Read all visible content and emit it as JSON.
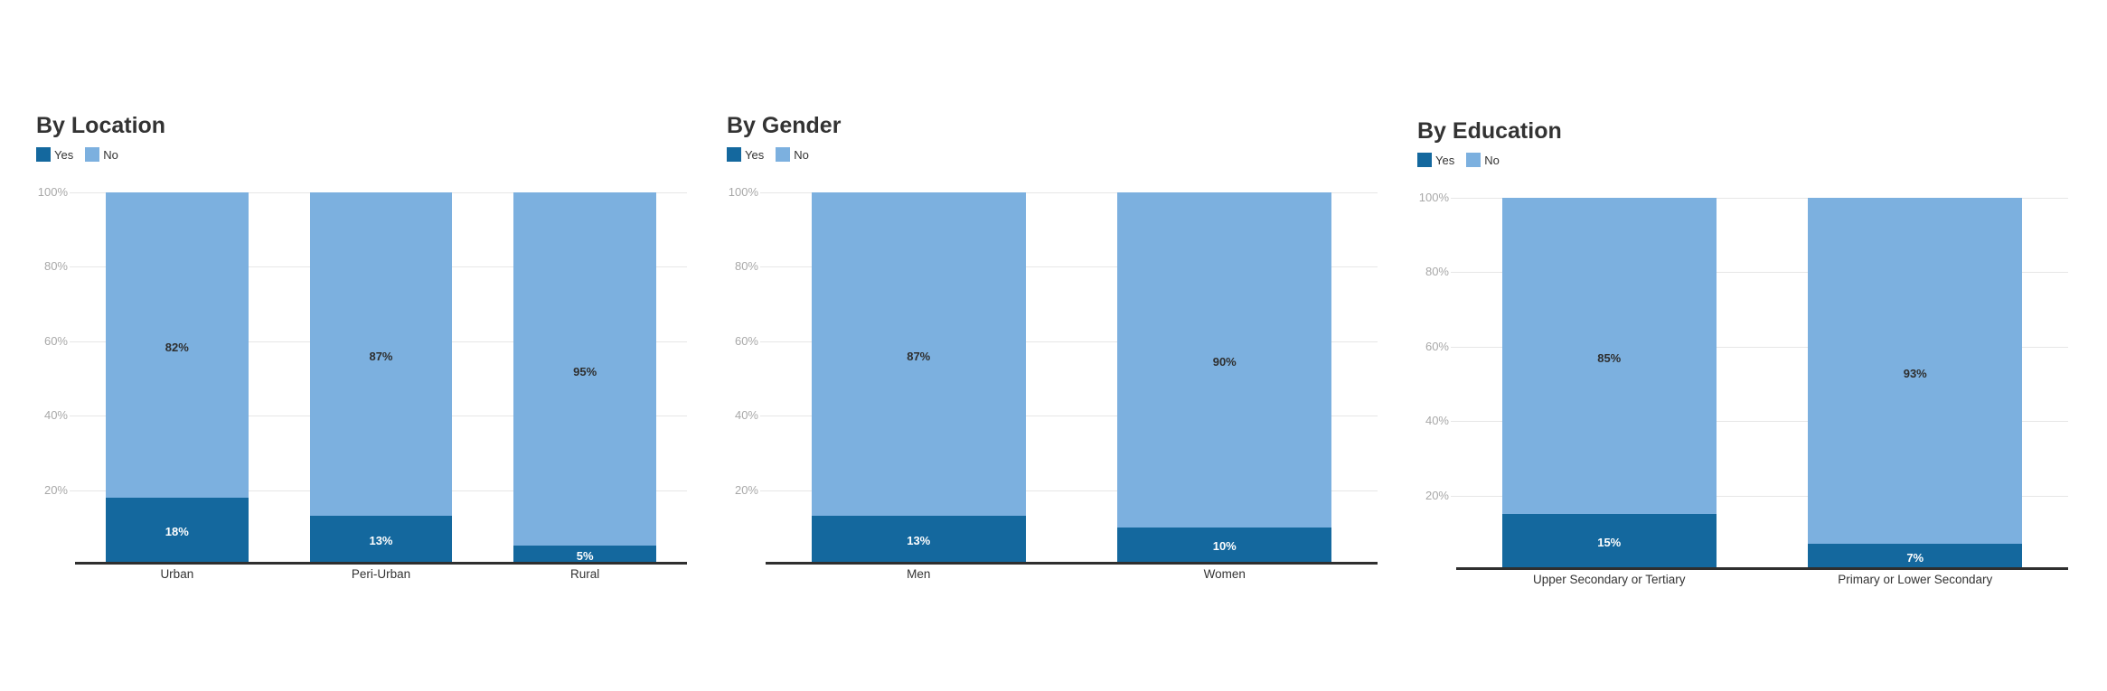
{
  "page": {
    "background": "#ffffff"
  },
  "palette": {
    "yes_color": "#14689E",
    "no_color": "#7CB0DF",
    "title_color": "#333333",
    "tick_label_color": "#a8a8a8",
    "grid_color": "#e7e7e7",
    "axis_color": "#2f2f2f",
    "label_on_dark": "#ffffff",
    "label_on_light": "#2e2e2e"
  },
  "chart_data": [
    {
      "type": "bar",
      "stacked": true,
      "title": "By Location",
      "categories": [
        "Urban",
        "Peri-Urban",
        "Rural"
      ],
      "series": [
        {
          "name": "Yes",
          "color": "#14689E",
          "values": [
            18,
            13,
            5
          ]
        },
        {
          "name": "No",
          "color": "#7CB0DF",
          "values": [
            82,
            87,
            95
          ]
        }
      ],
      "data_label_format": "percent",
      "xlabel": "",
      "ylabel": "",
      "ylim": [
        0,
        100
      ],
      "yticks": [
        20,
        40,
        60,
        80,
        100
      ],
      "ytick_suffix": "%",
      "grid": true,
      "legend_position": "top-left",
      "legend_entries": [
        "Yes",
        "No"
      ]
    },
    {
      "type": "bar",
      "stacked": true,
      "title": "By Gender",
      "categories": [
        "Men",
        "Women"
      ],
      "series": [
        {
          "name": "Yes",
          "color": "#14689E",
          "values": [
            13,
            10
          ]
        },
        {
          "name": "No",
          "color": "#7CB0DF",
          "values": [
            87,
            90
          ]
        }
      ],
      "data_label_format": "percent",
      "xlabel": "",
      "ylabel": "",
      "ylim": [
        0,
        100
      ],
      "yticks": [
        20,
        40,
        60,
        80,
        100
      ],
      "ytick_suffix": "%",
      "grid": true,
      "legend_position": "top-left",
      "legend_entries": [
        "Yes",
        "No"
      ]
    },
    {
      "type": "bar",
      "stacked": true,
      "title": "By Education",
      "categories": [
        "Upper Secondary or Tertiary",
        "Primary or Lower Secondary"
      ],
      "series": [
        {
          "name": "Yes",
          "color": "#14689E",
          "values": [
            15,
            7
          ]
        },
        {
          "name": "No",
          "color": "#7CB0DF",
          "values": [
            85,
            93
          ]
        }
      ],
      "data_label_format": "percent",
      "xlabel": "",
      "ylabel": "",
      "ylim": [
        0,
        100
      ],
      "yticks": [
        20,
        40,
        60,
        80,
        100
      ],
      "ytick_suffix": "%",
      "grid": true,
      "legend_position": "top-left",
      "legend_entries": [
        "Yes",
        "No"
      ]
    }
  ]
}
